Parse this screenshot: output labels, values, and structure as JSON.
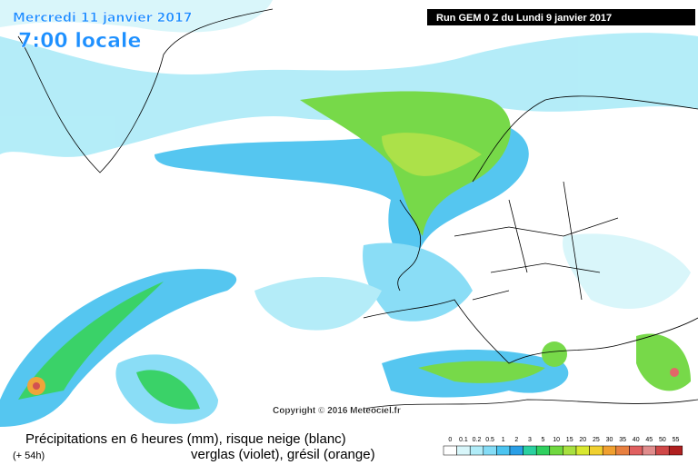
{
  "header": {
    "date": "Mercredi 11 janvier 2017",
    "time": "7:00 locale",
    "run": "Run GEM 0 Z du Lundi 9 janvier 2017"
  },
  "copyright": "Copyright © 2016 Meteociel.fr",
  "footer": {
    "title": "Précipitations en 6 heures (mm), risque neige (blanc)",
    "lead": "(+ 54h)",
    "subtitle": "verglas (violet), grésil (orange)"
  },
  "legend": {
    "labels": [
      "0",
      "0.1",
      "0.2",
      "0.5",
      "1",
      "2",
      "3",
      "5",
      "10",
      "15",
      "20",
      "25",
      "30",
      "35",
      "40",
      "45",
      "50",
      "55"
    ],
    "colors": [
      "#ffffff",
      "#d8f6fa",
      "#b0ecf8",
      "#84dcf6",
      "#4cc4f0",
      "#2a9fe6",
      "#2bd0a0",
      "#30d060",
      "#70d840",
      "#a8e040",
      "#d8e830",
      "#f0d030",
      "#f0a030",
      "#e88040",
      "#e06060",
      "#e08c8c",
      "#d04848",
      "#b02020"
    ]
  }
}
